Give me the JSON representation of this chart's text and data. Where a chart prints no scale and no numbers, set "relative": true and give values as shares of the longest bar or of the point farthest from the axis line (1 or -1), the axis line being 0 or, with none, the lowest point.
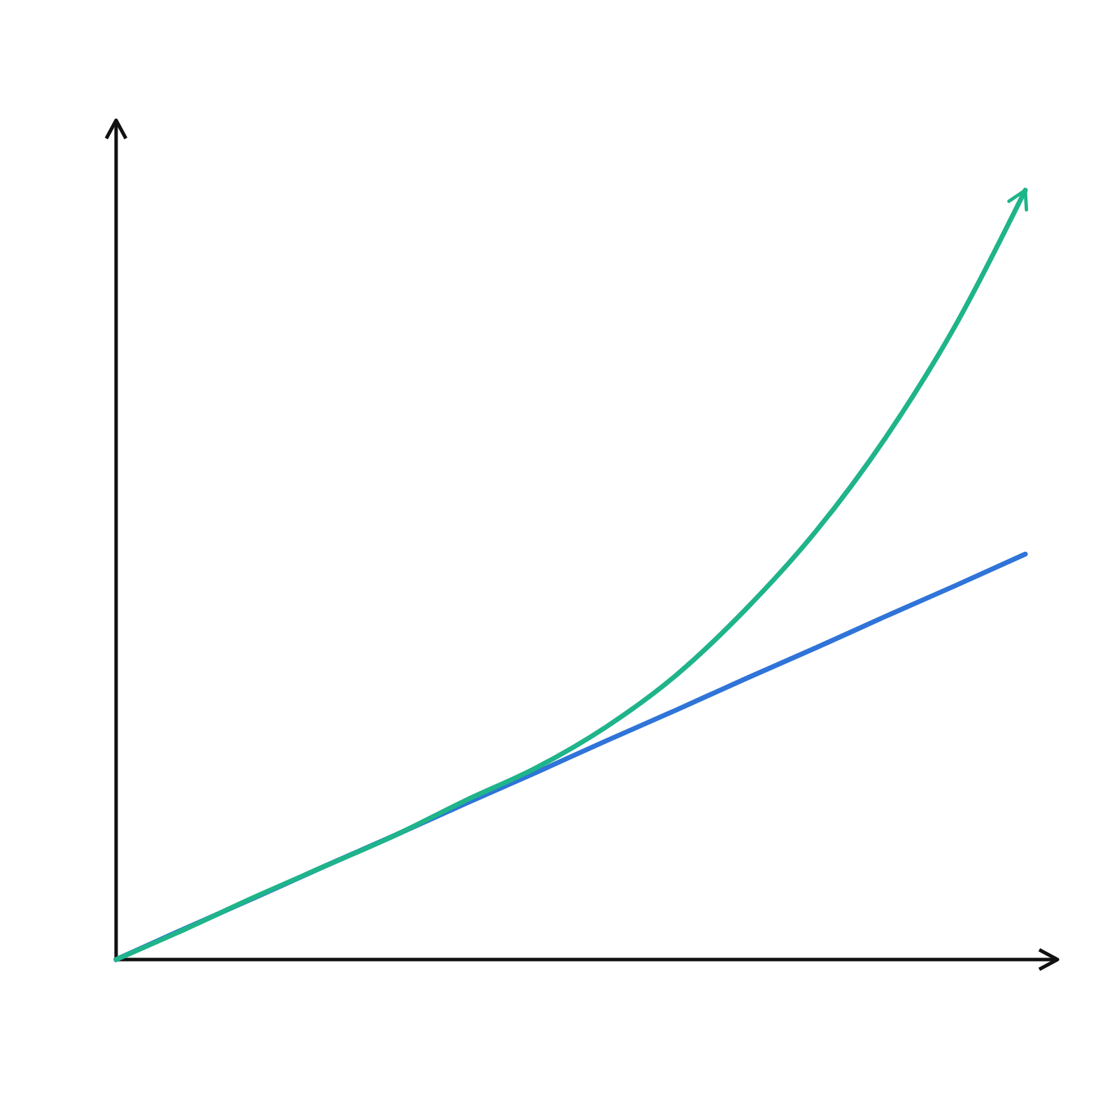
{
  "chart_data": {
    "type": "line",
    "relative": true,
    "categories": [
      null,
      null,
      null,
      null,
      null,
      null,
      null,
      null,
      null,
      null,
      null,
      null,
      null,
      null
    ],
    "series": [
      {
        "color": "#2f74d8",
        "values": [
          0,
          0.041,
          0.081,
          0.122,
          0.162,
          0.203,
          0.243,
          0.284,
          0.324,
          0.365,
          0.405,
          0.446,
          0.486,
          0.527
        ]
      },
      {
        "color": "#1fb48a",
        "values": [
          0,
          0.04,
          0.082,
          0.122,
          0.162,
          0.207,
          0.249,
          0.302,
          0.369,
          0.455,
          0.556,
          0.678,
          0.824,
          1
        ]
      }
    ]
  }
}
